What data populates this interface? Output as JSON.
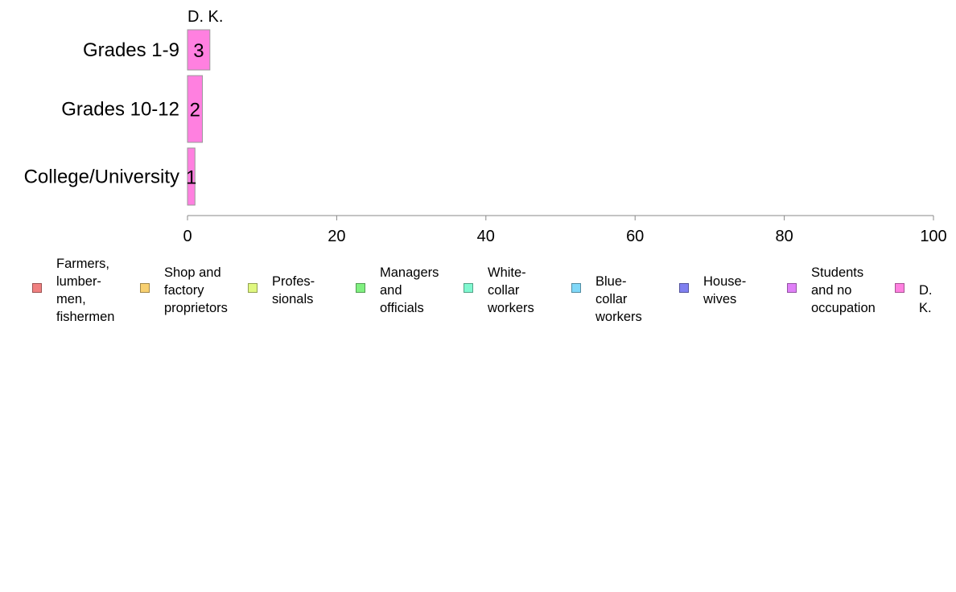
{
  "chart_data": {
    "type": "bar",
    "orientation": "horizontal",
    "stacked": true,
    "categories": [
      "Grades 1-9",
      "Grades 10-12",
      "College/University"
    ],
    "series": [
      {
        "name": "Farmers, lumber-men, fishermen",
        "values": [
          0,
          0,
          0
        ],
        "color": "#f08080"
      },
      {
        "name": "Shop and factory proprietors",
        "values": [
          0,
          0,
          0
        ],
        "color": "#f8d070"
      },
      {
        "name": "Profes-sionals",
        "values": [
          0,
          0,
          0
        ],
        "color": "#e0f880"
      },
      {
        "name": "Managers and officials",
        "values": [
          0,
          0,
          0
        ],
        "color": "#80f080"
      },
      {
        "name": "White-collar workers",
        "values": [
          0,
          0,
          0
        ],
        "color": "#80f8d0"
      },
      {
        "name": "Blue-collar workers",
        "values": [
          0,
          0,
          0
        ],
        "color": "#80d8f8"
      },
      {
        "name": "House-wives",
        "values": [
          0,
          0,
          0
        ],
        "color": "#8080f0"
      },
      {
        "name": "Students and no occupation",
        "values": [
          0,
          0,
          0
        ],
        "color": "#e080f8"
      },
      {
        "name": "D. K.",
        "values": [
          3,
          2,
          1
        ],
        "color": "#ff80e0"
      }
    ],
    "xlim": [
      0,
      100
    ],
    "xticks": [
      0,
      20,
      40,
      60,
      80,
      100
    ],
    "series_label_top": "D. K.",
    "grid": false,
    "legend_position": "bottom"
  },
  "legend": [
    {
      "text": "Farmers,\nlumber-\nmen,\nfishermen",
      "color": "#f08080"
    },
    {
      "text": "Shop and\nfactory\nproprietors",
      "color": "#f8d070"
    },
    {
      "text": "Profes-\nsionals",
      "color": "#e0f880"
    },
    {
      "text": "Managers\nand\nofficials",
      "color": "#80f080"
    },
    {
      "text": "White-\ncollar\nworkers",
      "color": "#80f8d0"
    },
    {
      "text": "Blue-collar\nworkers",
      "color": "#80d8f8"
    },
    {
      "text": "House-\nwives",
      "color": "#8080f0"
    },
    {
      "text": "Students\nand no\noccupation",
      "color": "#e080f8"
    },
    {
      "text": "D. K.",
      "color": "#ff80e0"
    }
  ]
}
